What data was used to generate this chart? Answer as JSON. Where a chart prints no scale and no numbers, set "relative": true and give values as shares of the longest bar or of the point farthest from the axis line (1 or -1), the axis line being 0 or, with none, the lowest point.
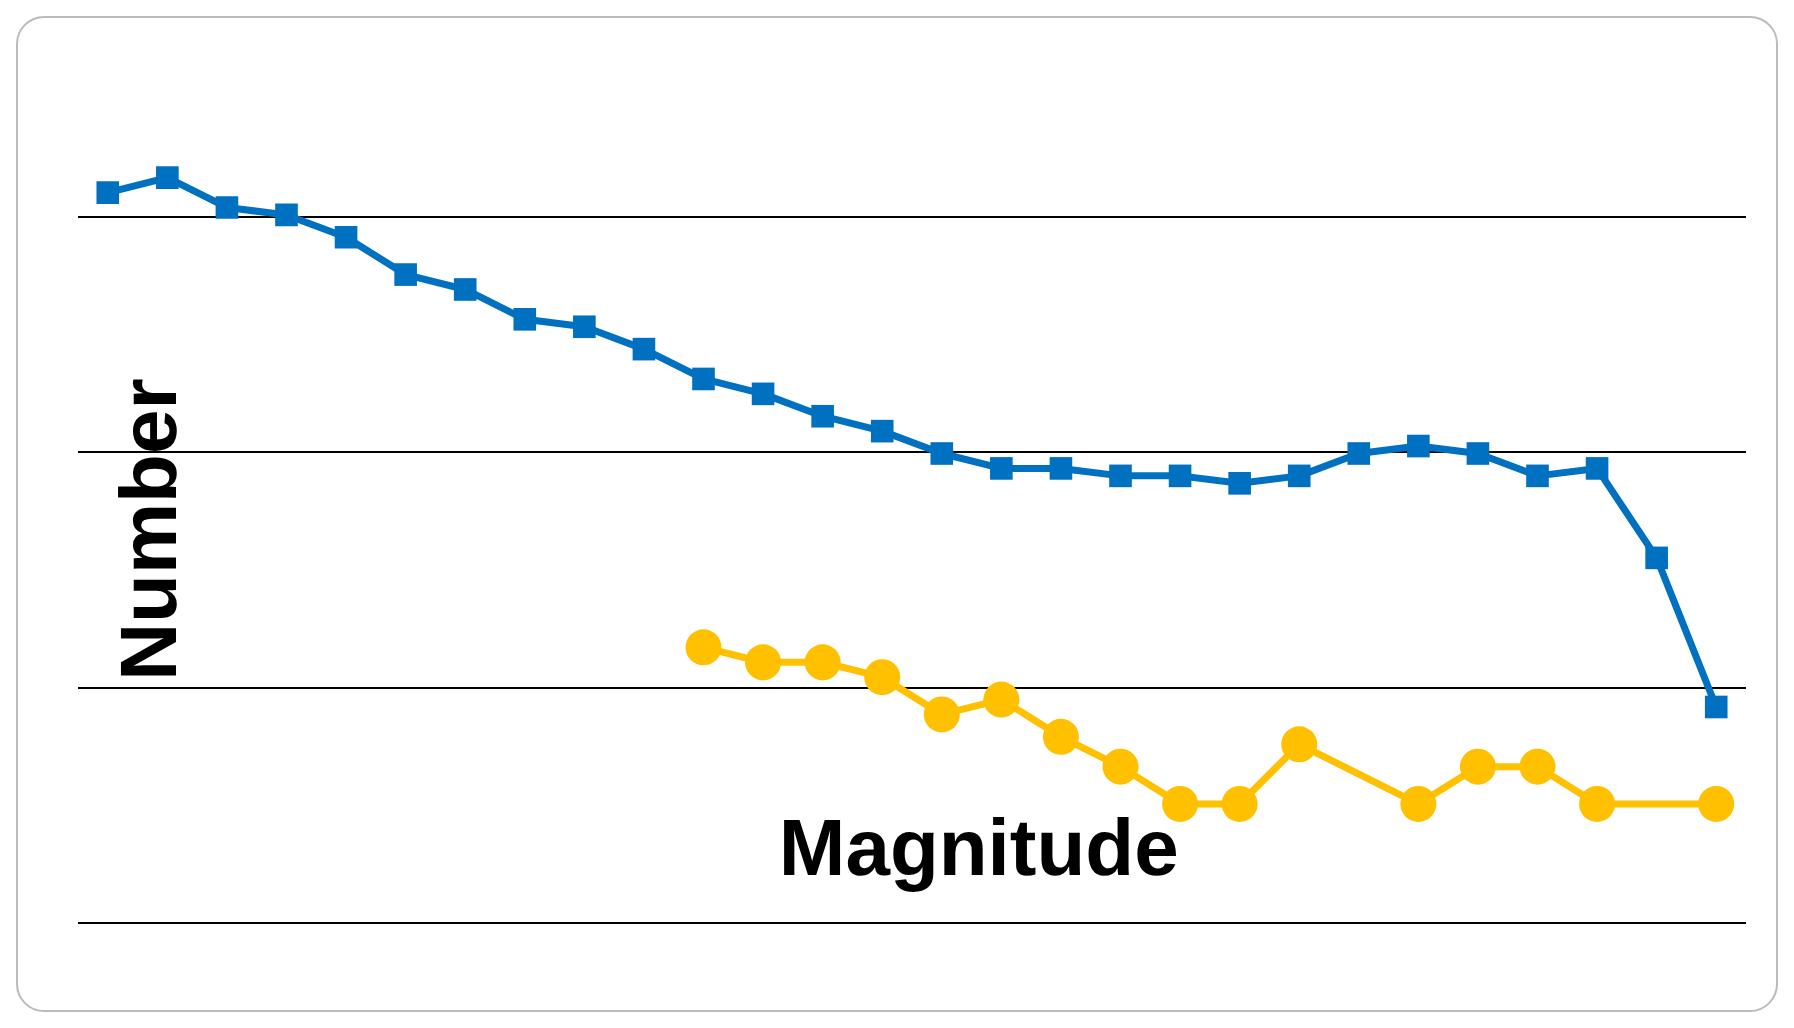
{
  "chart_data": {
    "type": "line",
    "relative": true,
    "xlabel": "Magnitude",
    "ylabel": "Number",
    "grid": "y",
    "legend": false,
    "categories": [
      null,
      null,
      null,
      null,
      null,
      null,
      null,
      null,
      null,
      null,
      null,
      null,
      null,
      null,
      null,
      null,
      null,
      null,
      null,
      null,
      null,
      null,
      null,
      null,
      null,
      null,
      null,
      null
    ],
    "series": [
      {
        "marker": "square",
        "color": "#0070c0",
        "values": [
          0.98,
          1,
          0.96,
          0.95,
          0.92,
          0.87,
          0.85,
          0.81,
          0.8,
          0.77,
          0.73,
          0.71,
          0.68,
          0.66,
          0.63,
          0.61,
          0.61,
          0.6,
          0.6,
          0.59,
          0.6,
          0.63,
          0.64,
          0.63,
          0.6,
          0.61,
          0.49,
          0.29
        ]
      },
      {
        "marker": "circle",
        "color": "#ffc000",
        "values": [
          null,
          null,
          null,
          null,
          null,
          null,
          null,
          null,
          null,
          null,
          0.37,
          0.35,
          0.35,
          0.33,
          0.28,
          0.3,
          0.25,
          0.21,
          0.16,
          0.16,
          0.24,
          null,
          0.16,
          0.21,
          0.21,
          0.16,
          null,
          0.16
        ]
      }
    ]
  }
}
